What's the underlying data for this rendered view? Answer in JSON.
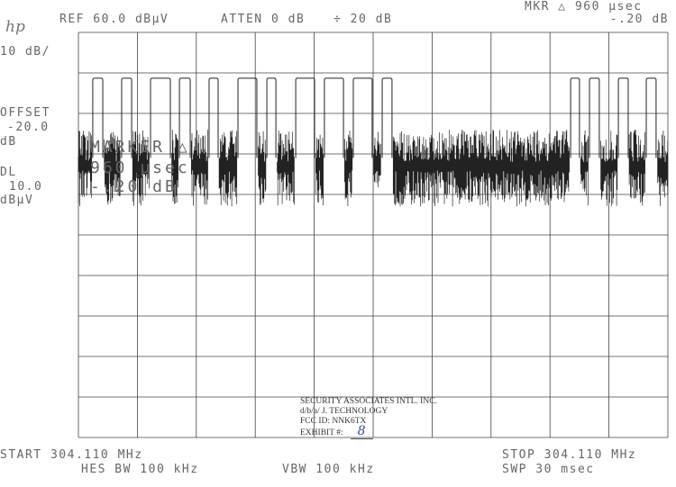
{
  "header": {
    "logo": "hp",
    "ref": "REF 60.0 dBµV",
    "atten": "ATTEN 0 dB",
    "scale_div": "÷ 20 dB",
    "marker_readout": "MKR △ 960 µsec",
    "marker_level": "-.20 dB"
  },
  "left_panel": {
    "scale": "10 dB/",
    "offset_label": "OFFSET",
    "offset_value": "-20.0",
    "offset_unit": "dB",
    "dl_label": "DL",
    "dl_value": "10.0",
    "dl_unit": "dBµV"
  },
  "marker_overlay": {
    "line1": "MARKER △",
    "line2": "960 µsec",
    "line3": "-.20 dB"
  },
  "footer": {
    "start": "START 304.110 MHz",
    "stop": "STOP 304.110 MHz",
    "res_bw": "HES BW 100 kHz",
    "vbw": "VBW 100 kHz",
    "sweep": "SWP 30 msec"
  },
  "stamp": {
    "line1": "SECURITY ASSOCIATES INTL. INC.",
    "line2": "d/b/a/ J. TECHNOLOGY",
    "line3": "FCC ID: NNK6TX",
    "exhibit_label": "EXHIBIT #:",
    "exhibit_number": "8"
  },
  "chart_data": {
    "type": "line",
    "title": "",
    "xlabel": "",
    "ylabel": "",
    "x_unit": "msec",
    "y_unit": "dBµV",
    "xlim": [
      0,
      30
    ],
    "ylim": [
      -40,
      60
    ],
    "x_divisions": 10,
    "y_divisions": 10,
    "grid": true,
    "pulse_level_dbuv": 48.7,
    "noise_floor_dbuv": 29,
    "noise_min_dbuv": 17,
    "noise_max_dbuv": 36,
    "pulses_ms": [
      [
        0.73,
        1.24
      ],
      [
        2.2,
        2.71
      ],
      [
        3.67,
        4.68
      ],
      [
        5.14,
        5.69
      ],
      [
        6.65,
        7.11
      ],
      [
        8.12,
        9.08
      ],
      [
        9.59,
        10.05
      ],
      [
        11.06,
        12.02
      ],
      [
        12.52,
        13.49
      ],
      [
        13.99,
        14.95
      ],
      [
        15.46,
        15.96
      ],
      [
        25.05,
        25.5
      ],
      [
        26.01,
        26.51
      ],
      [
        27.48,
        27.98
      ],
      [
        28.9,
        29.4
      ]
    ],
    "marker_delta": {
      "time": "960 µsec",
      "level": "-.20 dB"
    },
    "colors": {
      "trace": "#222222",
      "grid": "#444444",
      "text": "#666666"
    }
  }
}
